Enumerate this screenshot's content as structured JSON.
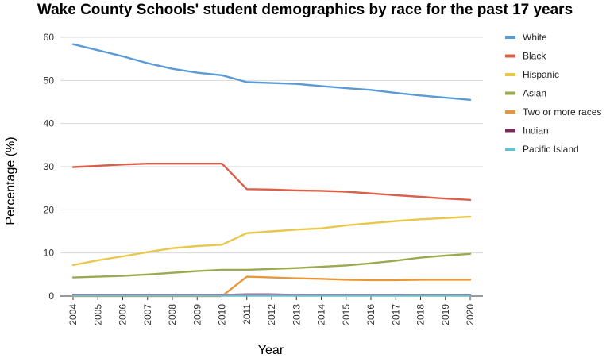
{
  "chart_data": {
    "type": "line",
    "title": "Wake County Schools' student demographics by race for the past 17 years",
    "xlabel": "Year",
    "ylabel": "Percentage (%)",
    "ylim": [
      0,
      60
    ],
    "yticks": [
      0,
      10,
      20,
      30,
      40,
      50,
      60
    ],
    "grid": true,
    "legend_position": "right",
    "categories": [
      "2004",
      "2005",
      "2006",
      "2007",
      "2008",
      "2009",
      "2010",
      "2011",
      "2012",
      "2013",
      "2014",
      "2015",
      "2016",
      "2017",
      "2018",
      "2019",
      "2020"
    ],
    "series": [
      {
        "name": "White",
        "color": "#5b9bd5",
        "values": [
          58.4,
          57.0,
          55.6,
          54.0,
          52.7,
          51.8,
          51.2,
          49.6,
          49.4,
          49.2,
          48.7,
          48.2,
          47.8,
          47.1,
          46.5,
          46.0,
          45.5
        ]
      },
      {
        "name": "Black",
        "color": "#d9604a",
        "values": [
          29.9,
          30.2,
          30.5,
          30.7,
          30.7,
          30.7,
          30.7,
          24.8,
          24.7,
          24.5,
          24.4,
          24.2,
          23.8,
          23.4,
          23.0,
          22.6,
          22.3
        ]
      },
      {
        "name": "Hispanic",
        "color": "#e8c84a",
        "values": [
          7.2,
          8.3,
          9.2,
          10.2,
          11.1,
          11.6,
          11.9,
          14.6,
          15.0,
          15.4,
          15.7,
          16.4,
          16.9,
          17.4,
          17.8,
          18.1,
          18.4
        ]
      },
      {
        "name": "Asian",
        "color": "#9aab4f",
        "values": [
          4.3,
          4.5,
          4.7,
          5.0,
          5.4,
          5.8,
          6.1,
          6.1,
          6.3,
          6.5,
          6.8,
          7.1,
          7.6,
          8.2,
          8.9,
          9.4,
          9.8
        ]
      },
      {
        "name": "Two or more races",
        "color": "#e8963a",
        "values": [
          0.0,
          0.0,
          0.0,
          0.0,
          0.0,
          0.0,
          0.0,
          4.5,
          4.3,
          4.1,
          4.0,
          3.8,
          3.7,
          3.7,
          3.8,
          3.8,
          3.8
        ]
      },
      {
        "name": "Indian",
        "color": "#7a2a5e",
        "values": [
          0.3,
          0.3,
          0.3,
          0.3,
          0.3,
          0.3,
          0.3,
          0.4,
          0.4,
          0.3,
          0.3,
          0.3,
          0.3,
          0.3,
          0.2,
          0.2,
          0.2
        ]
      },
      {
        "name": "Pacific Island",
        "color": "#6bbfcc",
        "values": [
          0.1,
          0.1,
          0.1,
          0.1,
          0.1,
          0.1,
          0.1,
          0.1,
          0.1,
          0.1,
          0.1,
          0.1,
          0.1,
          0.1,
          0.1,
          0.1,
          0.1
        ]
      }
    ]
  }
}
